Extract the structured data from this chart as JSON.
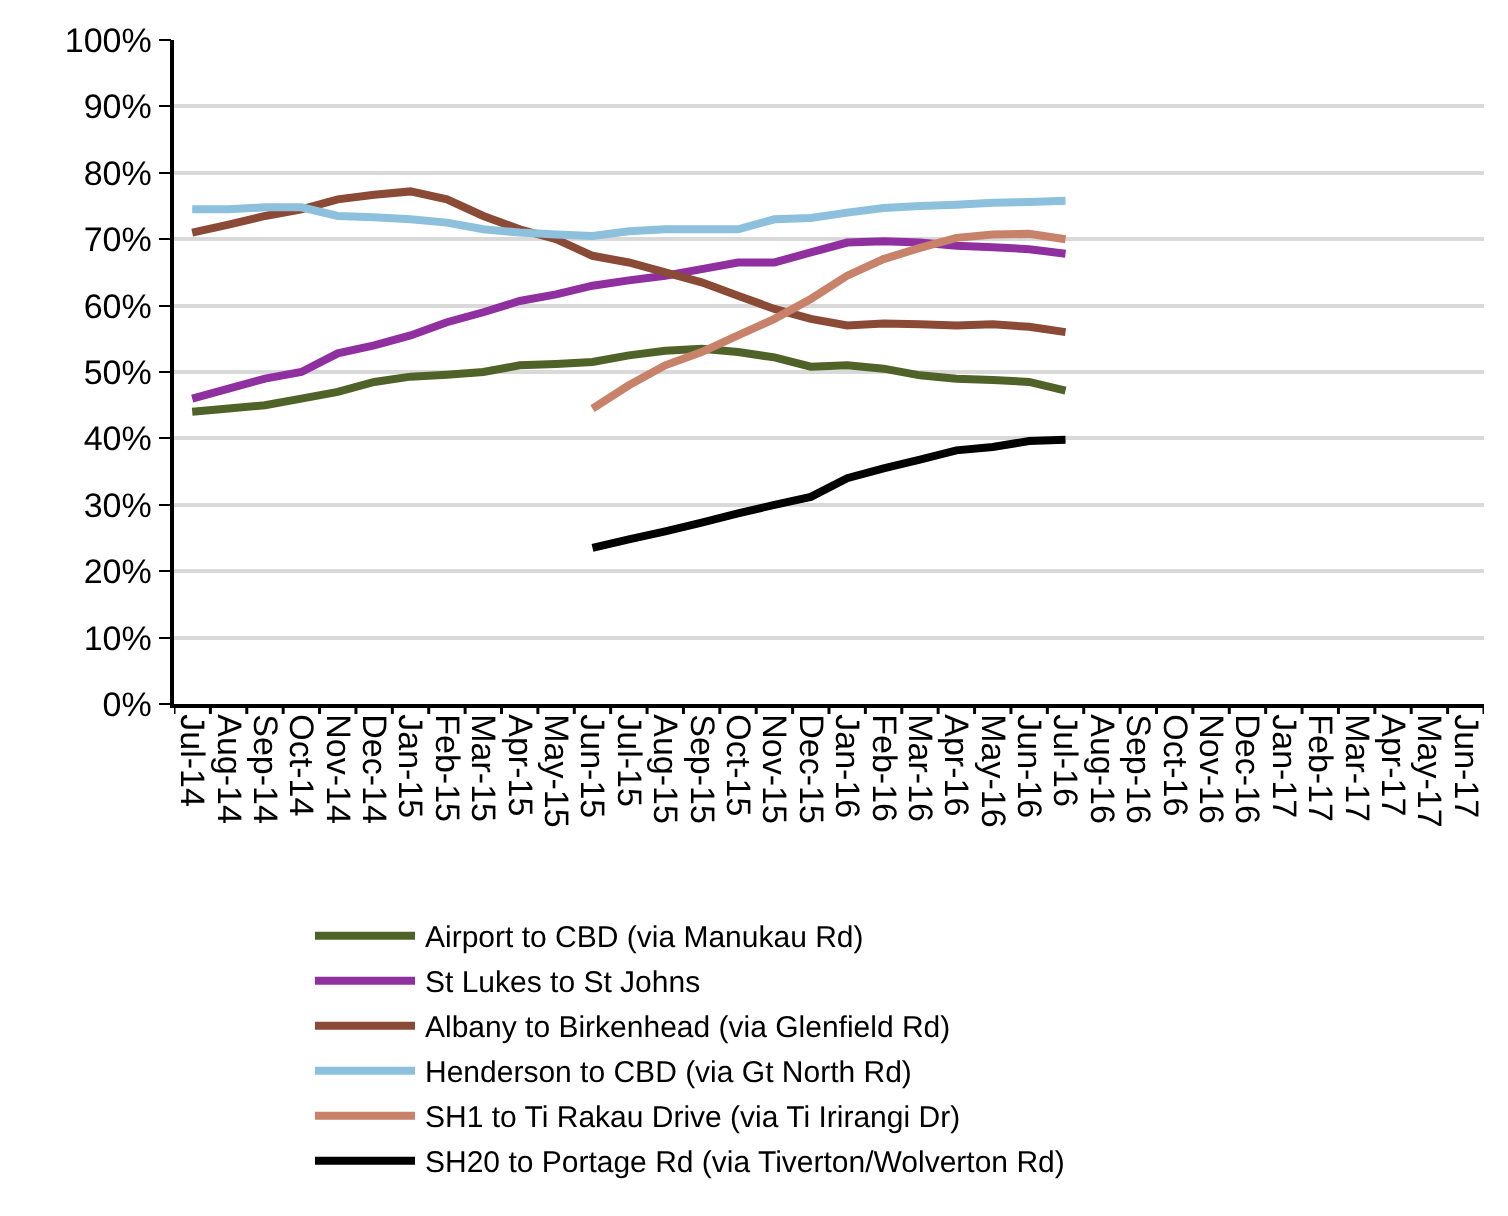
{
  "chart_data": {
    "type": "line",
    "categories": [
      "Jul-14",
      "Aug-14",
      "Sep-14",
      "Oct-14",
      "Nov-14",
      "Dec-14",
      "Jan-15",
      "Feb-15",
      "Mar-15",
      "Apr-15",
      "May-15",
      "Jun-15",
      "Jul-15",
      "Aug-15",
      "Sep-15",
      "Oct-15",
      "Nov-15",
      "Dec-15",
      "Jan-16",
      "Feb-16",
      "Mar-16",
      "Apr-16",
      "May-16",
      "Jun-16",
      "Jul-16",
      "Aug-16",
      "Sep-16",
      "Oct-16",
      "Nov-16",
      "Dec-16",
      "Jan-17",
      "Feb-17",
      "Mar-17",
      "Apr-17",
      "May-17",
      "Jun-17"
    ],
    "series": [
      {
        "name": "Airport to CBD (via Manukau Rd)",
        "color": "#4f6228",
        "values": [
          44,
          44.5,
          45,
          46,
          47,
          48.5,
          49.3,
          49.6,
          50,
          51,
          51.2,
          51.5,
          52.5,
          53.2,
          53.5,
          53,
          52.2,
          50.8,
          51,
          50.5,
          49.5,
          49,
          48.8,
          48.5,
          47.2,
          null,
          null,
          null,
          null,
          null,
          null,
          null,
          null,
          null,
          null,
          null
        ]
      },
      {
        "name": "St Lukes to St Johns",
        "color": "#9030a0",
        "values": [
          46,
          47.5,
          49,
          50,
          52.8,
          54,
          55.5,
          57.5,
          59,
          60.7,
          61.7,
          63,
          63.8,
          64.5,
          65.5,
          66.5,
          66.5,
          68,
          69.5,
          69.7,
          69.5,
          69,
          68.8,
          68.5,
          67.8,
          null,
          null,
          null,
          null,
          null,
          null,
          null,
          null,
          null,
          null,
          null
        ]
      },
      {
        "name": "Albany to Birkenhead (via Glenfield Rd)",
        "color": "#8b4a36",
        "values": [
          71,
          72.2,
          73.5,
          74.5,
          76,
          76.7,
          77.2,
          76,
          73.5,
          71.5,
          70,
          67.5,
          66.5,
          65,
          63.5,
          61.5,
          59.5,
          58,
          57,
          57.3,
          57.2,
          57,
          57.2,
          56.8,
          56,
          null,
          null,
          null,
          null,
          null,
          null,
          null,
          null,
          null,
          null,
          null
        ]
      },
      {
        "name": "Henderson to CBD (via Gt North Rd)",
        "color": "#8cc0dd",
        "values": [
          74.5,
          74.5,
          74.8,
          74.8,
          73.5,
          73.3,
          73,
          72.5,
          71.5,
          71,
          70.7,
          70.5,
          71.2,
          71.5,
          71.5,
          71.5,
          73,
          73.2,
          74,
          74.7,
          75,
          75.2,
          75.5,
          75.6,
          75.8,
          null,
          null,
          null,
          null,
          null,
          null,
          null,
          null,
          null,
          null,
          null
        ]
      },
      {
        "name": "SH1 to Ti Rakau Drive (via Ti Irirangi Dr)",
        "color": "#c8826a",
        "values": [
          null,
          null,
          null,
          null,
          null,
          null,
          null,
          null,
          null,
          null,
          null,
          44.5,
          48,
          51,
          53,
          55.5,
          58,
          61,
          64.5,
          67,
          68.7,
          70.2,
          70.7,
          70.8,
          70,
          null,
          null,
          null,
          null,
          null,
          null,
          null,
          null,
          null,
          null,
          null
        ]
      },
      {
        "name": "SH20 to Portage Rd (via Tiverton/Wolverton Rd)",
        "color": "#000000",
        "values": [
          null,
          null,
          null,
          null,
          null,
          null,
          null,
          null,
          null,
          null,
          null,
          23.5,
          24.8,
          26,
          27.3,
          28.7,
          30,
          31.2,
          34,
          35.5,
          36.8,
          38.2,
          38.7,
          39.6,
          39.8,
          null,
          null,
          null,
          null,
          null,
          null,
          null,
          null,
          null,
          null,
          null
        ]
      }
    ],
    "ylim": [
      0,
      100
    ],
    "yticks": [
      {
        "value": 0,
        "label": "0%"
      },
      {
        "value": 10,
        "label": "10%"
      },
      {
        "value": 20,
        "label": "20%"
      },
      {
        "value": 30,
        "label": "30%"
      },
      {
        "value": 40,
        "label": "40%"
      },
      {
        "value": 50,
        "label": "50%"
      },
      {
        "value": 60,
        "label": "60%"
      },
      {
        "value": 70,
        "label": "70%"
      },
      {
        "value": 80,
        "label": "80%"
      },
      {
        "value": 90,
        "label": "90%"
      },
      {
        "value": 100,
        "label": "100%"
      }
    ],
    "grid": "y",
    "legend": "bottom",
    "marker": "none",
    "line_style": "solid"
  }
}
